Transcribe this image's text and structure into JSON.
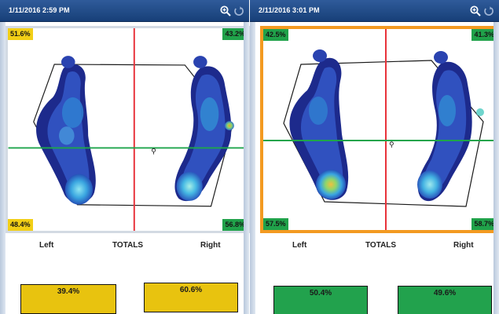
{
  "panels": [
    {
      "timestamp": "1/11/2016 2:59 PM",
      "quadrants": {
        "top_left": "51.6%",
        "top_right": "43.2%",
        "bottom_left": "48.4%",
        "bottom_right": "56.8%"
      },
      "quadrant_colors": {
        "top_left": "#f2cf16",
        "top_right": "#20a24a",
        "bottom_left": "#f2cf16",
        "bottom_right": "#20a24a"
      },
      "totals": {
        "left_label": "Left",
        "center_label": "TOTALS",
        "right_label": "Right"
      },
      "bars": [
        {
          "value": "39.4%",
          "color": "#e8c30f"
        },
        {
          "value": "60.6%",
          "color": "#e8c30f"
        }
      ],
      "selected": false
    },
    {
      "timestamp": "2/11/2016 3:01 PM",
      "quadrants": {
        "top_left": "42.5%",
        "top_right": "41.3%",
        "bottom_left": "57.5%",
        "bottom_right": "58.7%"
      },
      "quadrant_colors": {
        "top_left": "#20a24a",
        "top_right": "#20a24a",
        "bottom_left": "#20a24a",
        "bottom_right": "#20a24a"
      },
      "totals": {
        "left_label": "Left",
        "center_label": "TOTALS",
        "right_label": "Right"
      },
      "bars": [
        {
          "value": "50.4%",
          "color": "#22a24d"
        },
        {
          "value": "49.6%",
          "color": "#22a24d"
        }
      ],
      "selected": true
    }
  ],
  "icons": {
    "zoom": "zoom-in-icon",
    "reset": "refresh-icon"
  },
  "colors": {
    "titlebar": "#1f4c8c",
    "crosshair_vertical": "#e8323a",
    "crosshair_horizontal": "#1ea54b",
    "selected_border": "#f39a21"
  }
}
